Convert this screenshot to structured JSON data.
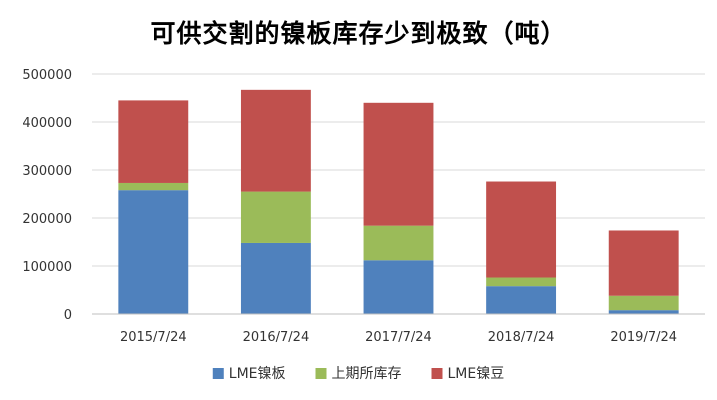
{
  "chart_data": {
    "type": "bar",
    "stacked": true,
    "title": "可供交割的镍板库存少到极致（吨）",
    "xlabel": "",
    "ylabel": "",
    "categories": [
      "2015/7/24",
      "2016/7/24",
      "2017/7/24",
      "2018/7/24",
      "2019/7/24"
    ],
    "series": [
      {
        "name": "LME镍板",
        "color": "#4F81BD",
        "values": [
          258000,
          148000,
          112000,
          58000,
          8000
        ]
      },
      {
        "name": "上期所库存",
        "color": "#9BBB59",
        "values": [
          15000,
          107000,
          72000,
          18000,
          30000
        ]
      },
      {
        "name": "LME镍豆",
        "color": "#C0504D",
        "values": [
          172000,
          212000,
          256000,
          200000,
          136000
        ]
      }
    ],
    "ylim": [
      0,
      500000
    ],
    "yticks": [
      0,
      100000,
      200000,
      300000,
      400000,
      500000
    ],
    "ytick_labels": [
      "0",
      "100000",
      "200000",
      "300000",
      "400000",
      "500000"
    ],
    "grid": true,
    "legend_position": "bottom"
  }
}
